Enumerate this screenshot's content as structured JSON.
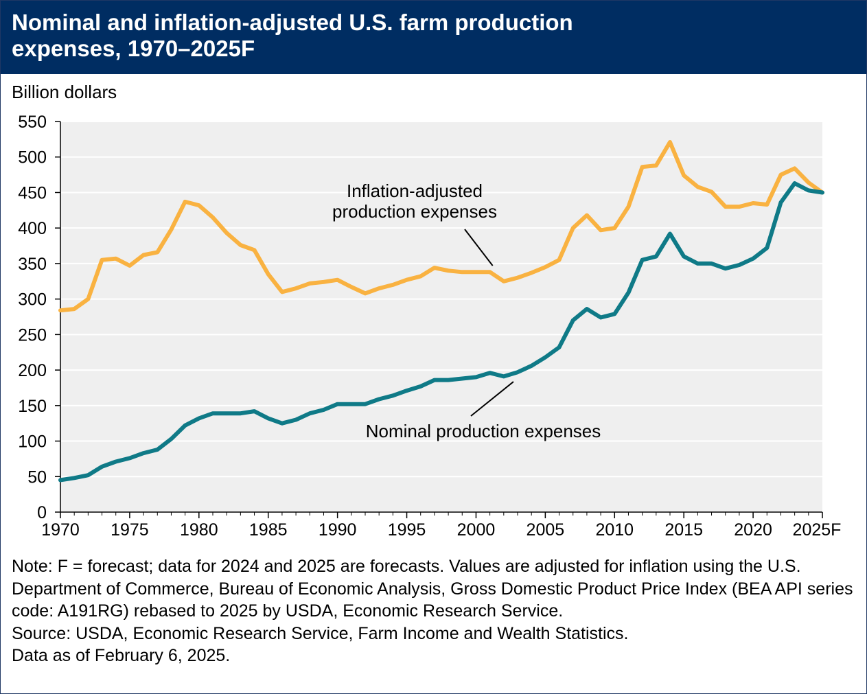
{
  "header": {
    "title": "Nominal and inflation-adjusted U.S. farm production expenses, 1970–2025F"
  },
  "colors": {
    "header_bg": "#002d62",
    "plot_bg": "#efefef",
    "inflation_adjusted": "#f9b241",
    "nominal": "#0f7a87"
  },
  "chart_data": {
    "type": "line",
    "title": "Nominal and inflation-adjusted U.S. farm production expenses, 1970–2025F",
    "ylabel": "Billion dollars",
    "xlabel": "",
    "ylim": [
      0,
      550
    ],
    "xlim": [
      1970,
      2025
    ],
    "grid": true,
    "yticks": [
      0,
      50,
      100,
      150,
      200,
      250,
      300,
      350,
      400,
      450,
      500,
      550
    ],
    "xticks": [
      {
        "value": 1970,
        "label": "1970"
      },
      {
        "value": 1975,
        "label": "1975"
      },
      {
        "value": 1980,
        "label": "1980"
      },
      {
        "value": 1985,
        "label": "1985"
      },
      {
        "value": 1990,
        "label": "1990"
      },
      {
        "value": 1995,
        "label": "1995"
      },
      {
        "value": 2000,
        "label": "2000"
      },
      {
        "value": 2005,
        "label": "2005"
      },
      {
        "value": 2010,
        "label": "2010"
      },
      {
        "value": 2015,
        "label": "2015"
      },
      {
        "value": 2020,
        "label": "2020"
      },
      {
        "value": 2025,
        "label": "2025F"
      }
    ],
    "x": [
      1970,
      1971,
      1972,
      1973,
      1974,
      1975,
      1976,
      1977,
      1978,
      1979,
      1980,
      1981,
      1982,
      1983,
      1984,
      1985,
      1986,
      1987,
      1988,
      1989,
      1990,
      1991,
      1992,
      1993,
      1994,
      1995,
      1996,
      1997,
      1998,
      1999,
      2000,
      2001,
      2002,
      2003,
      2004,
      2005,
      2006,
      2007,
      2008,
      2009,
      2010,
      2011,
      2012,
      2013,
      2014,
      2015,
      2016,
      2017,
      2018,
      2019,
      2020,
      2021,
      2022,
      2023,
      2024,
      2025
    ],
    "series": [
      {
        "name": "Inflation-adjusted production expenses",
        "values": [
          284,
          286,
          300,
          355,
          357,
          347,
          362,
          366,
          398,
          437,
          432,
          415,
          393,
          376,
          369,
          335,
          310,
          315,
          322,
          324,
          327,
          317,
          308,
          315,
          320,
          327,
          332,
          344,
          340,
          338,
          338,
          338,
          325,
          330,
          337,
          345,
          355,
          400,
          418,
          397,
          400,
          430,
          486,
          488,
          521,
          474,
          458,
          451,
          430,
          430,
          435,
          433,
          475,
          484,
          464,
          450
        ]
      },
      {
        "name": "Nominal production expenses",
        "values": [
          45,
          48,
          52,
          64,
          71,
          76,
          83,
          88,
          103,
          122,
          132,
          139,
          139,
          139,
          142,
          132,
          125,
          130,
          139,
          144,
          152,
          152,
          152,
          159,
          164,
          171,
          177,
          186,
          186,
          188,
          190,
          196,
          191,
          197,
          206,
          218,
          232,
          270,
          286,
          274,
          279,
          309,
          355,
          360,
          392,
          360,
          350,
          350,
          343,
          348,
          357,
          372,
          436,
          463,
          453,
          450
        ]
      }
    ],
    "annotations": [
      {
        "series": 0,
        "text": [
          "Inflation-adjusted",
          "production expenses"
        ]
      },
      {
        "series": 1,
        "text": [
          "Nominal production expenses"
        ]
      }
    ]
  },
  "notes": {
    "note": "Note: F = forecast; data for 2024 and 2025 are forecasts. Values are adjusted for inflation using the U.S. Department of Commerce, Bureau of Economic Analysis, Gross Domestic Product Price Index (BEA API series code: A191RG) rebased to 2025 by USDA, Economic Research Service.",
    "source": "Source: USDA, Economic Research Service, Farm Income and Wealth Statistics.",
    "as_of": "Data as of February 6, 2025."
  }
}
